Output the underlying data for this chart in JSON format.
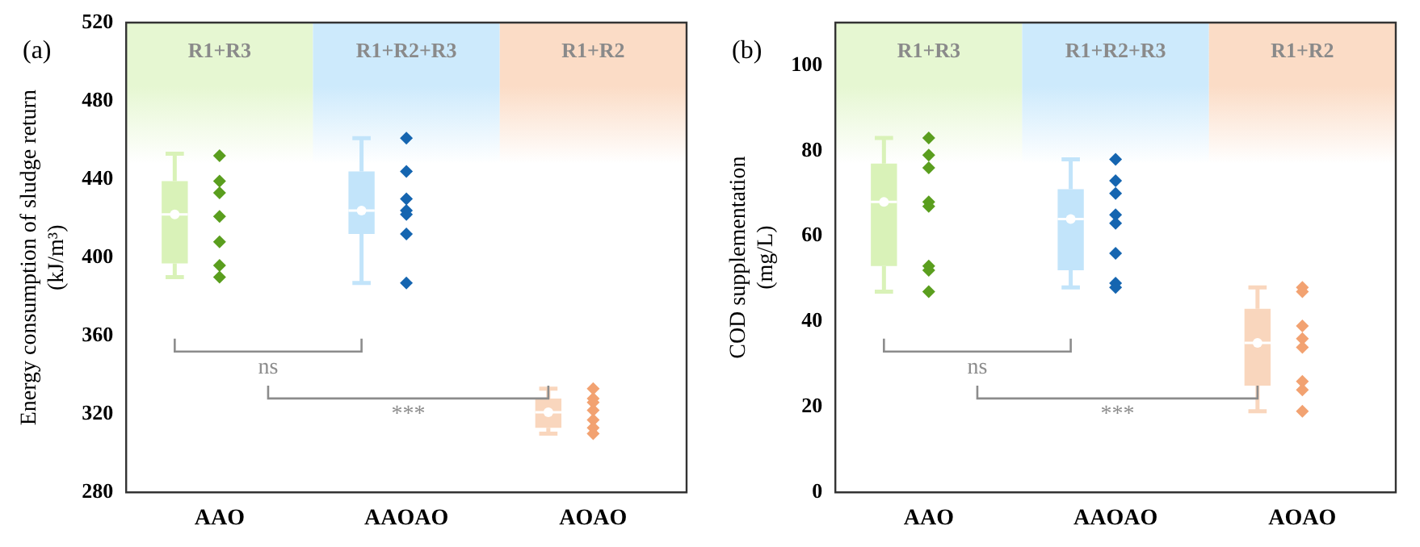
{
  "chart_data": [
    {
      "type": "box",
      "title": "(a)",
      "ylabel": "Energy consumption of sludge return\n(kJ/m³)",
      "categories": [
        "AAO",
        "AAOAO",
        "AOAO"
      ],
      "boxes": [
        {
          "low": 390,
          "q1": 397,
          "median": 422,
          "q3": 439,
          "high": 453,
          "mean": 422
        },
        {
          "low": 387,
          "q1": 412,
          "median": 424,
          "q3": 444,
          "high": 461,
          "mean": 424
        },
        {
          "low": 310,
          "q1": 313,
          "median": 321,
          "q3": 328,
          "high": 333,
          "mean": 321
        }
      ],
      "colors": [
        "#d9f2b8",
        "#c2e4fa",
        "#f9d6bd"
      ],
      "series": [
        {
          "type": "scatter",
          "x": [
            "AAO",
            "AAO",
            "AAO",
            "AAO",
            "AAO",
            "AAO",
            "AAO",
            "AAOAO",
            "AAOAO",
            "AAOAO",
            "AAOAO",
            "AAOAO",
            "AAOAO",
            "AAOAO",
            "AOAO",
            "AOAO",
            "AOAO",
            "AOAO",
            "AOAO",
            "AOAO",
            "AOAO"
          ],
          "values": [
            452,
            439,
            433,
            421,
            408,
            396,
            390,
            461,
            444,
            430,
            424,
            422,
            412,
            387,
            333,
            328,
            326,
            322,
            317,
            313,
            310
          ],
          "colors": [
            "#5a9e1e",
            "#5a9e1e",
            "#5a9e1e",
            "#5a9e1e",
            "#5a9e1e",
            "#5a9e1e",
            "#5a9e1e",
            "#1565b0",
            "#1565b0",
            "#1565b0",
            "#1565b0",
            "#1565b0",
            "#1565b0",
            "#1565b0",
            "#f2a271",
            "#f2a271",
            "#f2a271",
            "#f2a271",
            "#f2a271",
            "#f2a271",
            "#f2a271"
          ]
        }
      ],
      "marker": "diamond",
      "ylim": [
        280,
        520
      ],
      "yticks": [
        280,
        320,
        360,
        400,
        440,
        480,
        520
      ],
      "bands": [
        {
          "axis": "x",
          "from": "AAO",
          "to": "AAO",
          "label": "R1+R3",
          "color": "#e6f7d2"
        },
        {
          "axis": "x",
          "from": "AAOAO",
          "to": "AAOAO",
          "label": "R1+R2+R3",
          "color": "#cdeafc"
        },
        {
          "axis": "x",
          "from": "AOAO",
          "to": "AOAO",
          "label": "R1+R2",
          "color": "#fbdcc6"
        }
      ],
      "annotations": [
        "ns",
        "***"
      ]
    },
    {
      "type": "box",
      "title": "(b)",
      "ylabel": "COD supplementation\n(mg/L)",
      "categories": [
        "AAO",
        "AAOAO",
        "AOAO"
      ],
      "boxes": [
        {
          "low": 47,
          "q1": 53,
          "median": 68,
          "q3": 77,
          "high": 83,
          "mean": 68
        },
        {
          "low": 48,
          "q1": 52,
          "median": 64,
          "q3": 71,
          "high": 78,
          "mean": 64
        },
        {
          "low": 19,
          "q1": 25,
          "median": 35,
          "q3": 43,
          "high": 48,
          "mean": 35
        }
      ],
      "colors": [
        "#d9f2b8",
        "#c2e4fa",
        "#f9d6bd"
      ],
      "series": [
        {
          "type": "scatter",
          "x": [
            "AAO",
            "AAO",
            "AAO",
            "AAO",
            "AAO",
            "AAO",
            "AAO",
            "AAO",
            "AAOAO",
            "AAOAO",
            "AAOAO",
            "AAOAO",
            "AAOAO",
            "AAOAO",
            "AAOAO",
            "AAOAO",
            "AOAO",
            "AOAO",
            "AOAO",
            "AOAO",
            "AOAO",
            "AOAO",
            "AOAO",
            "AOAO"
          ],
          "values": [
            83,
            79,
            76,
            68,
            67,
            53,
            52,
            47,
            78,
            73,
            70,
            65,
            63,
            56,
            49,
            48,
            48,
            47,
            39,
            36,
            34,
            26,
            24,
            19
          ],
          "colors": [
            "#5a9e1e",
            "#5a9e1e",
            "#5a9e1e",
            "#5a9e1e",
            "#5a9e1e",
            "#5a9e1e",
            "#5a9e1e",
            "#5a9e1e",
            "#1565b0",
            "#1565b0",
            "#1565b0",
            "#1565b0",
            "#1565b0",
            "#1565b0",
            "#1565b0",
            "#1565b0",
            "#f2a271",
            "#f2a271",
            "#f2a271",
            "#f2a271",
            "#f2a271",
            "#f2a271",
            "#f2a271",
            "#f2a271"
          ]
        }
      ],
      "marker": "diamond",
      "ylim": [
        0,
        110
      ],
      "yticks": [
        0,
        20,
        40,
        60,
        80,
        100
      ],
      "bands": [
        {
          "axis": "x",
          "from": "AAO",
          "to": "AAO",
          "label": "R1+R3",
          "color": "#e6f7d2"
        },
        {
          "axis": "x",
          "from": "AAOAO",
          "to": "AAOAO",
          "label": "R1+R2+R3",
          "color": "#cdeafc"
        },
        {
          "axis": "x",
          "from": "AOAO",
          "to": "AOAO",
          "label": "R1+R2",
          "color": "#fbdcc6"
        }
      ],
      "annotations": [
        "ns",
        "***"
      ]
    }
  ]
}
